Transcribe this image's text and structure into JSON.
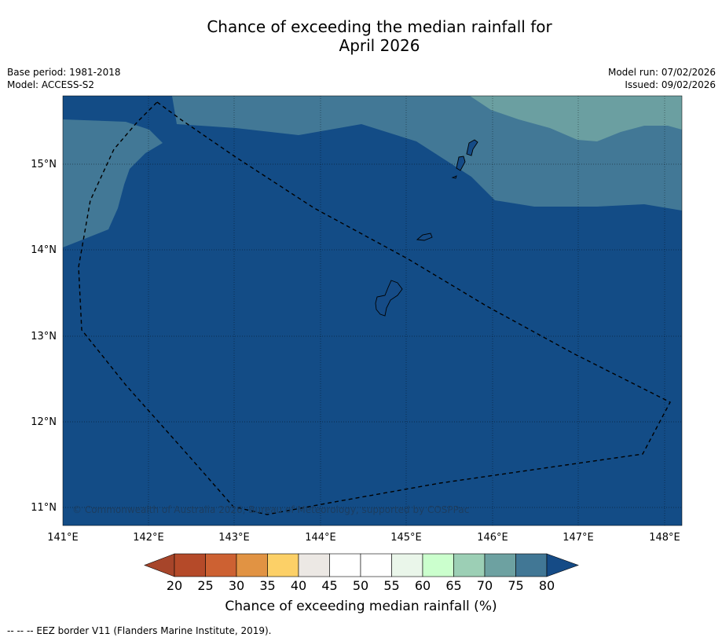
{
  "title": {
    "line1": "Chance of exceeding the median rainfall for",
    "line2": "April 2026"
  },
  "meta_left": {
    "base_period": "Base period: 1981-2018",
    "model": "Model: ACCESS-S2"
  },
  "meta_right": {
    "model_run": "Model run: 07/02/2026",
    "issued": "Issued: 09/02/2026"
  },
  "map": {
    "lon_range": [
      141,
      148.2
    ],
    "lat_range": [
      10.8,
      15.8
    ],
    "lon_labels": [
      "141°E",
      "142°E",
      "143°E",
      "144°E",
      "145°E",
      "146°E",
      "147°E",
      "148°E"
    ],
    "lat_labels": [
      "15°N",
      "14°N",
      "13°N",
      "12°N",
      "11°N"
    ],
    "copyright": "© Commonwealth of Australia 2026, Bureau of Meteorology, supported by COSPPac",
    "colors": {
      "band_80_plus": "#134c86",
      "band_75_80": "#427896",
      "band_70_75": "#6b9fa1"
    }
  },
  "colorbar": {
    "ticks": [
      "20",
      "25",
      "30",
      "35",
      "40",
      "45",
      "50",
      "55",
      "60",
      "65",
      "70",
      "75",
      "80"
    ],
    "colors": [
      "#a7452a",
      "#b54a29",
      "#cd6132",
      "#e19343",
      "#fcd067",
      "#ece8e4",
      "#ffffff",
      "#ffffff",
      "#eaf6ea",
      "#cbffcd",
      "#9ccfb5",
      "#6da1a1",
      "#417795",
      "#154b86"
    ],
    "label": "Chance of exceeding median rainfall (%)"
  },
  "legend": {
    "text": "--  --  -- EEZ border V11 (Flanders Marine Institute, 2019)."
  }
}
